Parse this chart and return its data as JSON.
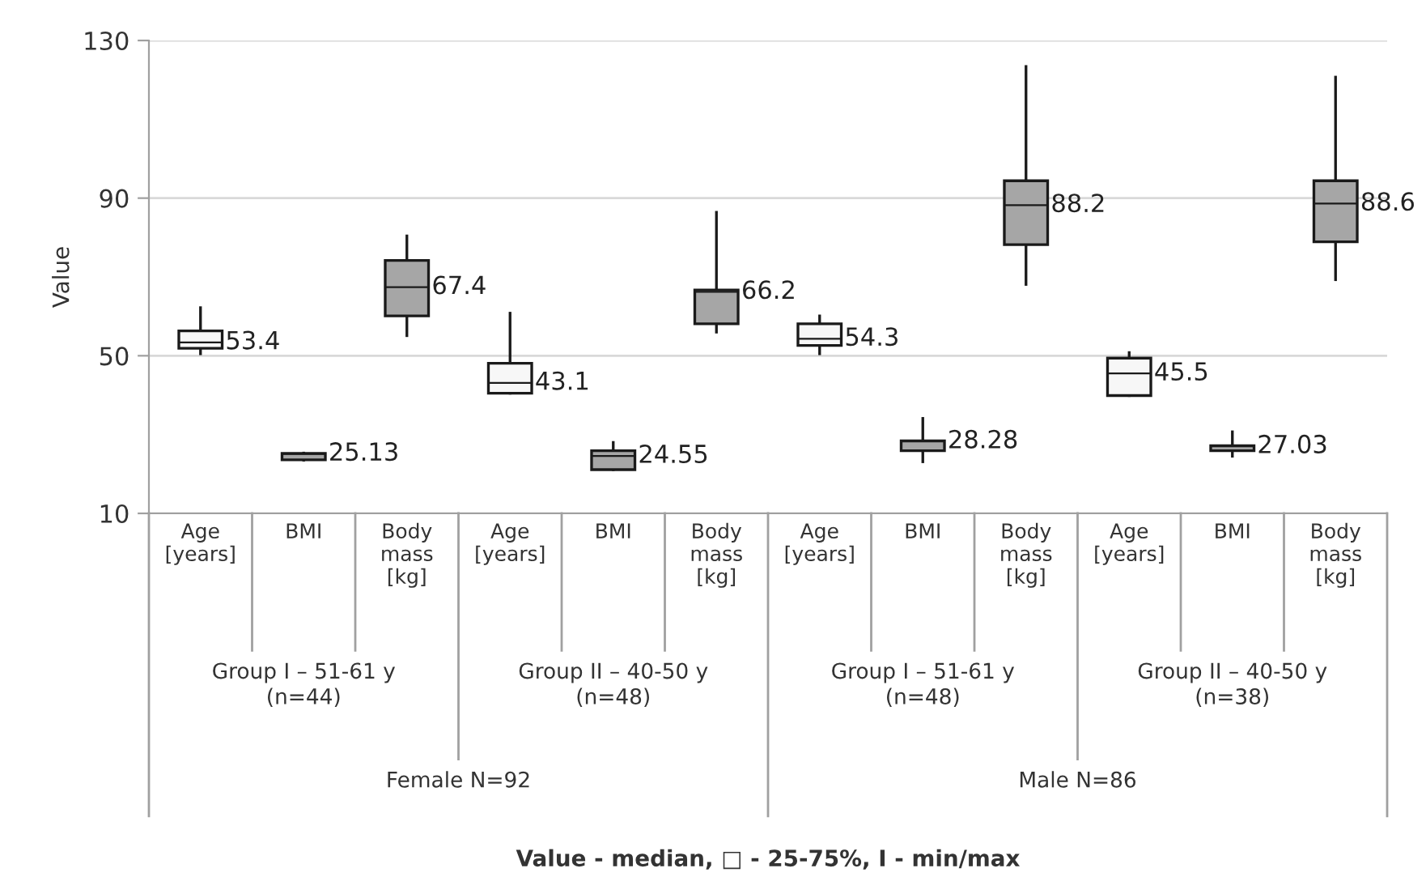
{
  "chart_data": {
    "type": "box",
    "ylabel": "Value",
    "categories": [
      "Age\n[years]",
      "BMI",
      "Body\nmass\n[kg]",
      "Age\n[years]",
      "BMI",
      "Body\nmass\n[kg]",
      "Age\n[years]",
      "BMI",
      "Body\nmass\n[kg]",
      "Age\n[years]",
      "BMI",
      "Body\nmass\n[kg]"
    ],
    "annotations": [
      "Group I – 51-61 y\n(n=44)",
      "Group II – 40-50 y\n(n=48)",
      "Group I – 51-61 y\n(n=48)",
      "Group II – 40-50 y\n(n=38)",
      "Female N=92",
      "Male N=86",
      "Value - median, □ - 25-75%, I - min/max"
    ],
    "boxes": [
      {
        "low": 50.5,
        "q1": 51.9,
        "median": 53.4,
        "q3": 56.3,
        "high": 62.2
      },
      {
        "low": 23.5,
        "q1": 23.6,
        "median": 25.13,
        "q3": 25.2,
        "high": 25.3
      },
      {
        "low": 55.1,
        "q1": 60.1,
        "median": 67.4,
        "q3": 74.2,
        "high": 80.4
      },
      {
        "low": 40.5,
        "q1": 40.5,
        "median": 43.1,
        "q3": 48.1,
        "high": 60.8
      },
      {
        "low": 21.1,
        "q1": 21.1,
        "median": 24.55,
        "q3": 25.9,
        "high": 28.0
      },
      {
        "low": 56.0,
        "q1": 58.1,
        "median": 66.2,
        "q3": 66.7,
        "high": 86.4
      },
      {
        "low": 50.5,
        "q1": 52.6,
        "median": 54.3,
        "q3": 58.1,
        "high": 60.1
      },
      {
        "low": 23.1,
        "q1": 25.9,
        "median": 28.28,
        "q3": 28.4,
        "high": 34.1
      },
      {
        "low": 68.1,
        "q1": 78.2,
        "median": 88.2,
        "q3": 94.4,
        "high": 123.4
      },
      {
        "low": 39.9,
        "q1": 39.9,
        "median": 45.5,
        "q3": 49.4,
        "high": 50.8
      },
      {
        "low": 24.5,
        "q1": 25.9,
        "median": 27.03,
        "q3": 27.2,
        "high": 30.7
      },
      {
        "low": 69.3,
        "q1": 78.9,
        "median": 88.6,
        "q3": 94.4,
        "high": 120.7
      }
    ],
    "colors": [
      "#f7f7f7",
      "#a6a6a6",
      "#a6a6a6",
      "#f7f7f7",
      "#a6a6a6",
      "#a6a6a6",
      "#f7f7f7",
      "#a6a6a6",
      "#a6a6a6",
      "#f7f7f7",
      "#a6a6a6",
      "#a6a6a6"
    ],
    "value_labels": [
      "53.4",
      "25.13",
      "67.4",
      "43.1",
      "24.55",
      "66.2",
      "54.3",
      "28.28",
      "88.2",
      "45.5",
      "27.03",
      "88.6"
    ],
    "ylim": [
      10,
      130
    ],
    "yticks": [
      10,
      50,
      90,
      130
    ],
    "grid": "y"
  }
}
